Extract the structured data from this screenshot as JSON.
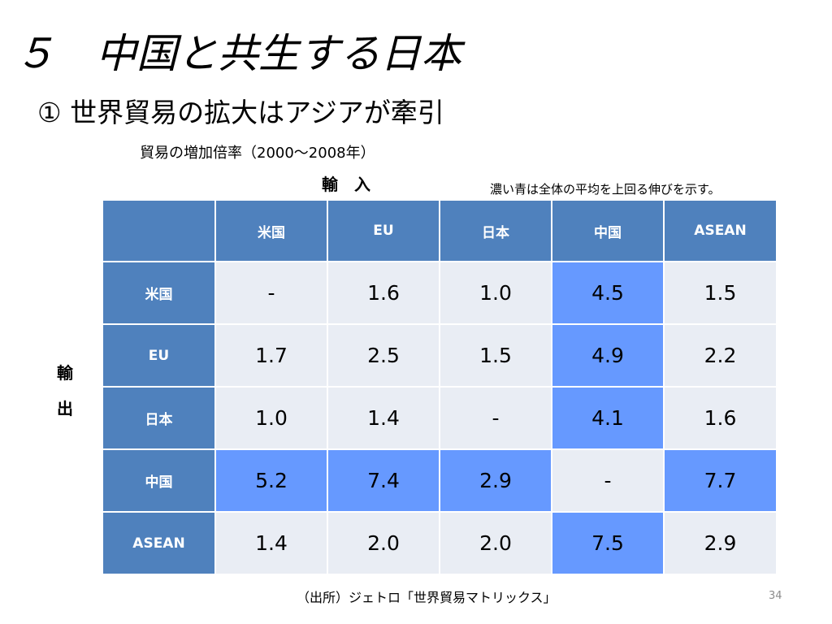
{
  "slide": {
    "title": "５　中国と共生する日本",
    "subtitle": "① 世界貿易の拡大はアジアが牽引",
    "page_number": "34"
  },
  "table": {
    "caption": "貿易の増加倍率（2000～2008年）",
    "import_label": "輸　入",
    "export_label_top": "輸",
    "export_label_bottom": "出",
    "legend_note": "濃い青は全体の平均を上回る伸びを示す。",
    "highlight_color": "#6699ff",
    "header_color": "#4f81bd",
    "cell_color": "#e9edf4",
    "columns": [
      "米国",
      "EU",
      "日本",
      "中国",
      "ASEAN"
    ],
    "rows": [
      {
        "label": "米国",
        "values": [
          "-",
          "1.6",
          "1.0",
          "4.5",
          "1.5"
        ],
        "highlight": [
          false,
          false,
          false,
          true,
          false
        ]
      },
      {
        "label": "EU",
        "values": [
          "1.7",
          "2.5",
          "1.5",
          "4.9",
          "2.2"
        ],
        "highlight": [
          false,
          false,
          false,
          true,
          false
        ]
      },
      {
        "label": "日本",
        "values": [
          "1.0",
          "1.4",
          "-",
          "4.1",
          "1.6"
        ],
        "highlight": [
          false,
          false,
          false,
          true,
          false
        ]
      },
      {
        "label": "中国",
        "values": [
          "5.2",
          "7.4",
          "2.9",
          "-",
          "7.7"
        ],
        "highlight": [
          true,
          true,
          true,
          false,
          true
        ]
      },
      {
        "label": "ASEAN",
        "values": [
          "1.4",
          "2.0",
          "2.0",
          "7.5",
          "2.9"
        ],
        "highlight": [
          false,
          false,
          false,
          true,
          false
        ]
      }
    ]
  },
  "source": "（出所）ジェトロ「世界貿易マトリックス」"
}
